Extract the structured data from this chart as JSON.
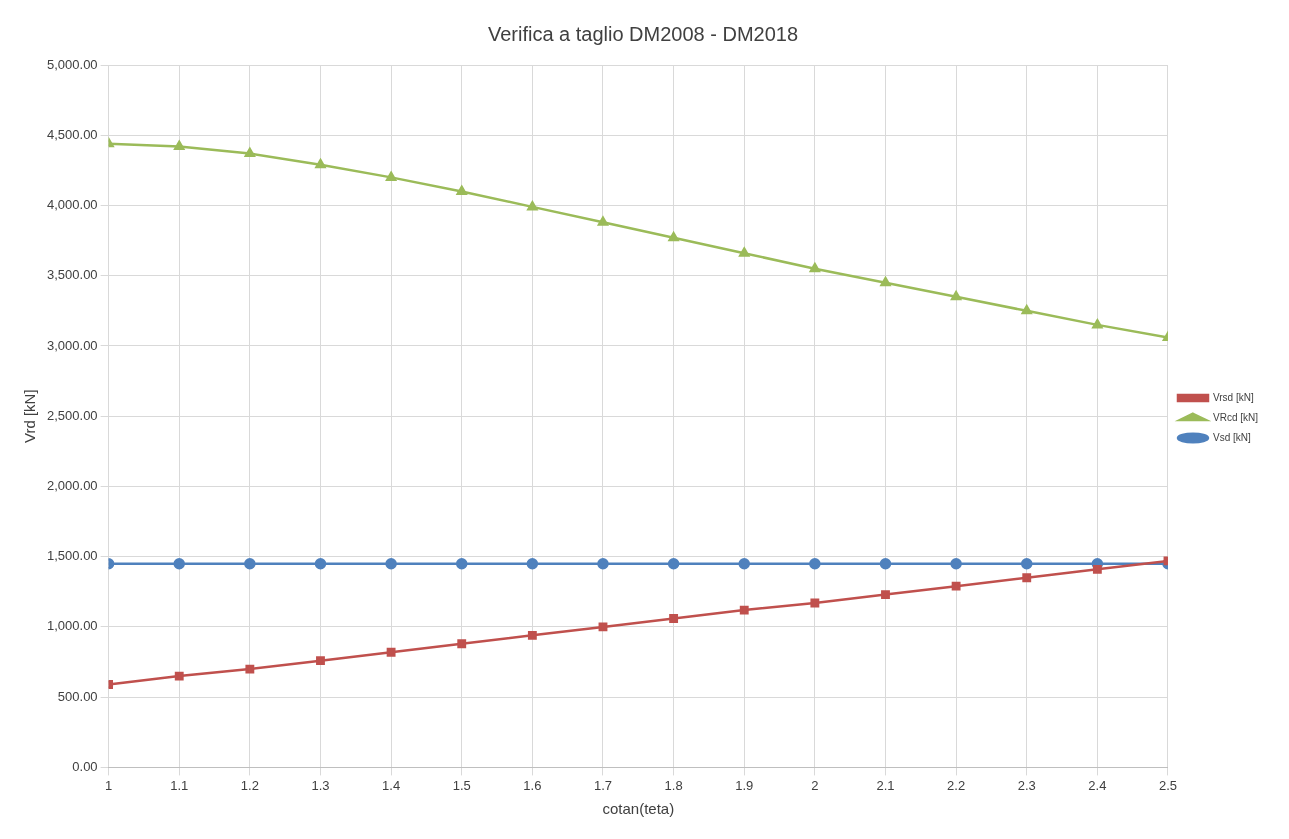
{
  "chart_data": {
    "type": "line",
    "title": "Verifica a taglio DM2008 - DM2018",
    "xlabel": "cotan(teta)",
    "ylabel": "Vrd [kN]",
    "x": [
      1,
      1.1,
      1.2,
      1.3,
      1.4,
      1.5,
      1.6,
      1.7,
      1.8,
      1.9,
      2,
      2.1,
      2.2,
      2.3,
      2.4,
      2.5
    ],
    "series": [
      {
        "name": "Vrsd [kN]",
        "color": "#c0504d",
        "marker": "square",
        "values": [
          590,
          650,
          700,
          760,
          820,
          880,
          940,
          1000,
          1060,
          1120,
          1170,
          1230,
          1290,
          1350,
          1410,
          1470
        ]
      },
      {
        "name": "VRcd [kN]",
        "color": "#9bbb59",
        "marker": "triangle",
        "values": [
          4440,
          4420,
          4370,
          4290,
          4200,
          4100,
          3990,
          3880,
          3770,
          3660,
          3550,
          3450,
          3350,
          3250,
          3150,
          3060
        ]
      },
      {
        "name": "Vsd [kN]",
        "color": "#4f81bd",
        "marker": "circle",
        "values": [
          1450,
          1450,
          1450,
          1450,
          1450,
          1450,
          1450,
          1450,
          1450,
          1450,
          1450,
          1450,
          1450,
          1450,
          1450,
          1450
        ]
      }
    ],
    "xlim": [
      1,
      2.5
    ],
    "xticks": [
      1,
      1.1,
      1.2,
      1.3,
      1.4,
      1.5,
      1.6,
      1.7,
      1.8,
      1.9,
      2,
      2.1,
      2.2,
      2.3,
      2.4,
      2.5
    ],
    "ylim": [
      0,
      5000
    ],
    "yticks": [
      {
        "value": 0,
        "label": "0.00"
      },
      {
        "value": 500,
        "label": "500.00"
      },
      {
        "value": 1000,
        "label": "1,000.00"
      },
      {
        "value": 1500,
        "label": "1,500.00"
      },
      {
        "value": 2000,
        "label": "2,000.00"
      },
      {
        "value": 2500,
        "label": "2,500.00"
      },
      {
        "value": 3000,
        "label": "3,000.00"
      },
      {
        "value": 3500,
        "label": "3,500.00"
      },
      {
        "value": 4000,
        "label": "4,000.00"
      },
      {
        "value": 4500,
        "label": "4,500.00"
      },
      {
        "value": 5000,
        "label": "5,000.00"
      }
    ],
    "grid": true,
    "legend": "right",
    "line_style": "solid"
  }
}
